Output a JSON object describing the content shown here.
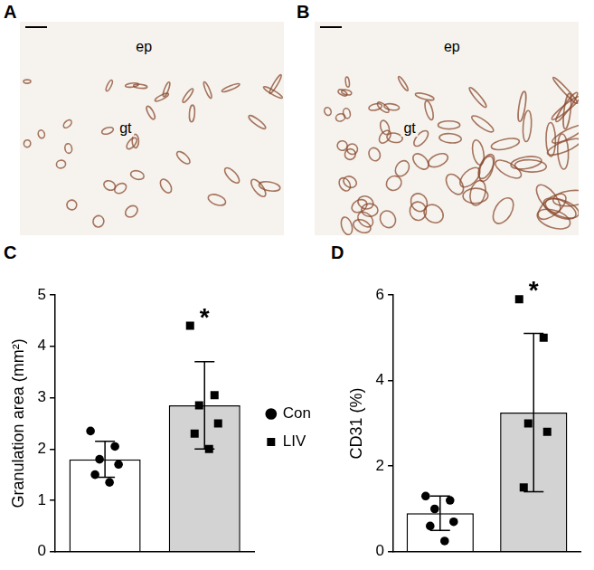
{
  "panels": [
    {
      "letter": "A",
      "labels": [
        "ep",
        "gt"
      ]
    },
    {
      "letter": "B",
      "labels": [
        "ep",
        "gt"
      ]
    }
  ],
  "chart_data": [
    {
      "panel": "C",
      "type": "bar",
      "categories": [
        "Con",
        "LIV"
      ],
      "values": [
        1.8,
        2.85
      ],
      "errors": [
        0.35,
        0.85
      ],
      "points": [
        [
          2.35,
          2.05,
          1.8,
          1.7,
          1.5,
          1.35
        ],
        [
          4.4,
          3.05,
          2.85,
          2.5,
          2.3,
          2.0
        ]
      ],
      "colors": [
        "#ffffff",
        "#d3d3d3"
      ],
      "markers": [
        "circle",
        "square"
      ],
      "ylabel": "Granulation area (mm²)",
      "ylim": [
        0,
        5
      ],
      "yticks": [
        0,
        1,
        2,
        3,
        4,
        5
      ],
      "grid": false,
      "legend": "right",
      "tick_labels": "y",
      "annotations": [
        {
          "category": "LIV",
          "text": "*"
        }
      ]
    },
    {
      "panel": "D",
      "type": "bar",
      "categories": [
        "Con",
        "LIV"
      ],
      "values": [
        0.9,
        3.25
      ],
      "errors": [
        0.4,
        1.85
      ],
      "points": [
        [
          1.3,
          1.2,
          1.0,
          0.7,
          0.6,
          0.25
        ],
        [
          5.9,
          5.0,
          3.0,
          2.8,
          1.5
        ]
      ],
      "colors": [
        "#ffffff",
        "#d3d3d3"
      ],
      "markers": [
        "circle",
        "square"
      ],
      "ylabel": "CD31 (%)",
      "ylim": [
        0,
        6
      ],
      "yticks": [
        0,
        2,
        4,
        6
      ],
      "grid": false,
      "tick_labels": "y",
      "annotations": [
        {
          "category": "LIV",
          "text": "*"
        }
      ]
    }
  ]
}
